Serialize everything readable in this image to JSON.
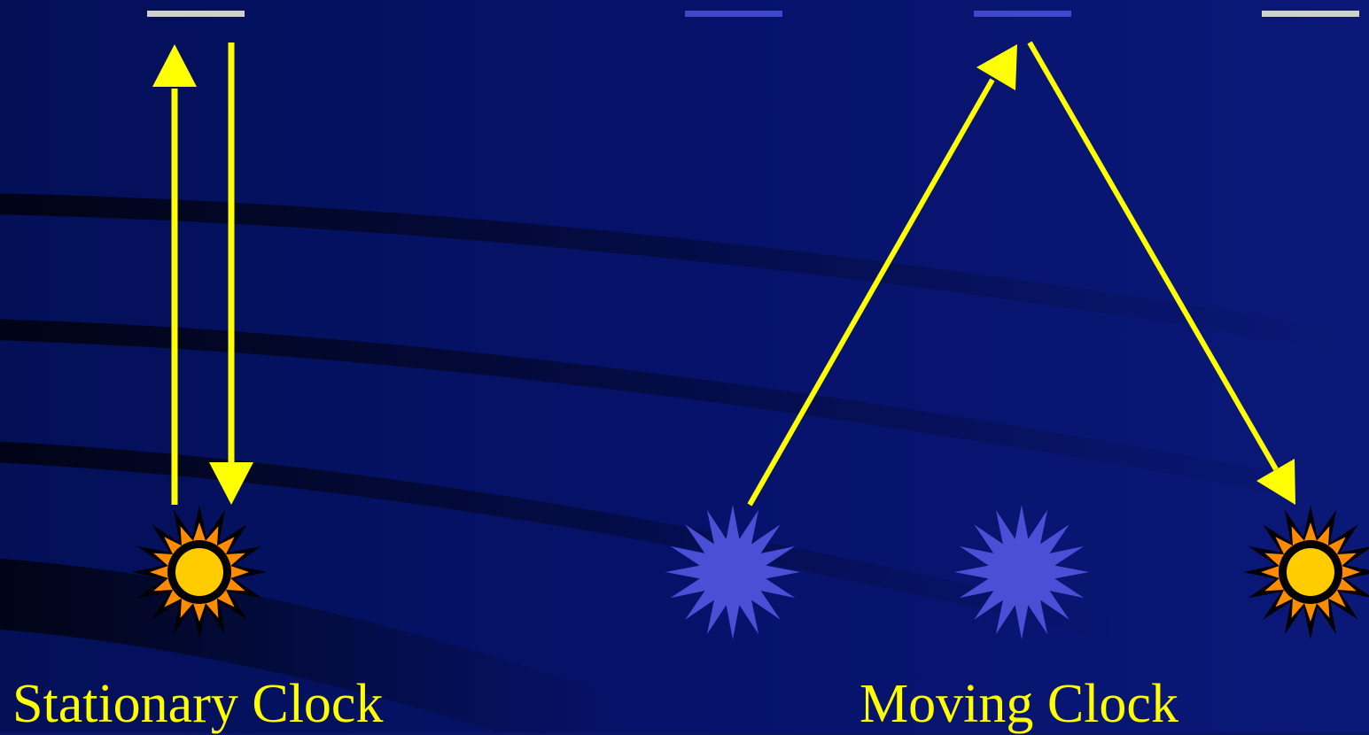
{
  "colors": {
    "background": "#0a1566",
    "light_path": "#ffff00",
    "mirror_lit": "#d0d0d0",
    "mirror_dim": "#3f48cc",
    "flash_body": "#ffcc00",
    "flash_rays": "#ff8c00",
    "clock_idle": "#4a4fd6",
    "caption": "#ffff00"
  },
  "labels": {
    "stationary": "Stationary Clock",
    "moving": "Moving Clock"
  },
  "icons": {
    "flash": "sun-burst-icon",
    "idle": "star-burst-icon",
    "mirror": "mirror-bar-icon"
  }
}
